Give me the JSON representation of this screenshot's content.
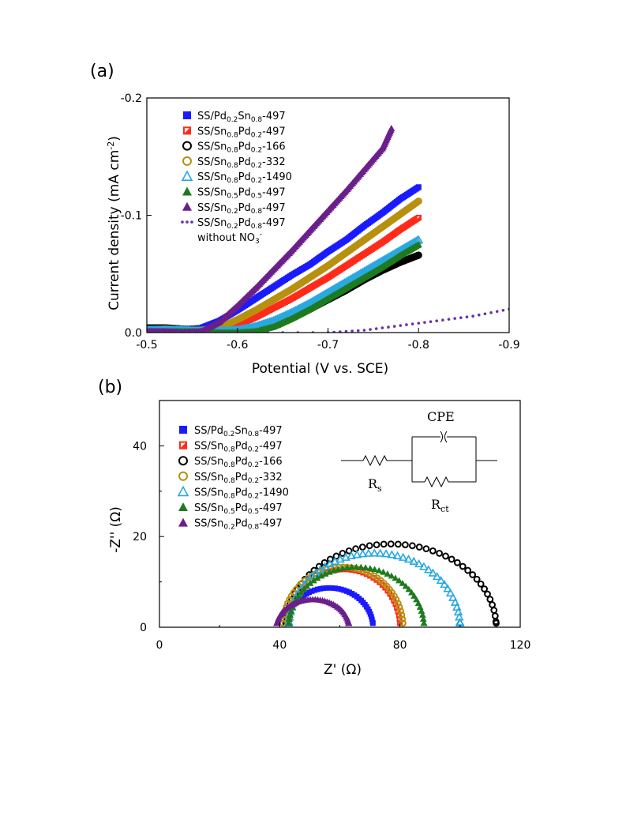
{
  "panel_a_label": "(a)",
  "panel_b_label": "(b)",
  "chart_data": [
    {
      "type": "line",
      "xlabel": "Potential (V vs. SCE)",
      "ylabel": "Current density (mA cm-2)",
      "xlim": [
        -0.5,
        -0.9
      ],
      "ylim": [
        0.0,
        -0.2
      ],
      "xticks": [
        "-0.5",
        "-0.6",
        "-0.7",
        "-0.8",
        "-0.9"
      ],
      "yticks": [
        "0.0",
        "-0.1",
        "-0.2"
      ],
      "legend_position": "top-left",
      "series": [
        {
          "name": "SS/Pd0.2Sn0.8-497",
          "marker": "square",
          "color": "#1a1aff",
          "x": [
            -0.5,
            -0.52,
            -0.54,
            -0.56,
            -0.58,
            -0.6,
            -0.62,
            -0.64,
            -0.66,
            -0.68,
            -0.7,
            -0.72,
            -0.74,
            -0.76,
            -0.78,
            -0.8
          ],
          "y": [
            -0.003,
            -0.004,
            -0.003,
            -0.004,
            -0.01,
            -0.019,
            -0.029,
            -0.039,
            -0.049,
            -0.058,
            -0.069,
            -0.079,
            -0.091,
            -0.102,
            -0.114,
            -0.124
          ]
        },
        {
          "name": "SS/Sn0.8Pd0.2-497",
          "marker": "half-square",
          "color": "#ff2a1a",
          "x": [
            -0.5,
            -0.52,
            -0.54,
            -0.56,
            -0.58,
            -0.6,
            -0.62,
            -0.64,
            -0.66,
            -0.68,
            -0.7,
            -0.72,
            -0.74,
            -0.76,
            -0.78,
            -0.8
          ],
          "y": [
            -0.002,
            -0.003,
            -0.002,
            -0.001,
            -0.002,
            -0.006,
            -0.013,
            -0.021,
            -0.029,
            -0.038,
            -0.047,
            -0.057,
            -0.067,
            -0.077,
            -0.088,
            -0.098
          ]
        },
        {
          "name": "SS/Sn0.8Pd0.2-166",
          "marker": "open-circle",
          "color": "#000000",
          "x": [
            -0.5,
            -0.52,
            -0.54,
            -0.56,
            -0.58,
            -0.6,
            -0.62,
            -0.64,
            -0.66,
            -0.68,
            -0.7,
            -0.72,
            -0.74,
            -0.76,
            -0.78,
            -0.8
          ],
          "y": [
            -0.004,
            -0.004,
            -0.003,
            -0.002,
            -0.001,
            -0.001,
            -0.003,
            -0.007,
            -0.013,
            -0.02,
            -0.028,
            -0.036,
            -0.045,
            -0.053,
            -0.06,
            -0.066
          ]
        },
        {
          "name": "SS/Sn0.8Pd0.2-332",
          "marker": "open-circle",
          "color": "#b8900f",
          "x": [
            -0.5,
            -0.52,
            -0.54,
            -0.56,
            -0.58,
            -0.6,
            -0.62,
            -0.64,
            -0.66,
            -0.68,
            -0.7,
            -0.72,
            -0.74,
            -0.76,
            -0.78,
            -0.8
          ],
          "y": [
            -0.002,
            -0.003,
            -0.002,
            -0.002,
            -0.004,
            -0.011,
            -0.019,
            -0.028,
            -0.037,
            -0.047,
            -0.057,
            -0.068,
            -0.079,
            -0.09,
            -0.101,
            -0.112
          ]
        },
        {
          "name": "SS/Sn0.8Pd0.2-1490",
          "marker": "open-triangle",
          "color": "#2aa8e0",
          "x": [
            -0.5,
            -0.52,
            -0.54,
            -0.56,
            -0.58,
            -0.6,
            -0.62,
            -0.64,
            -0.66,
            -0.68,
            -0.7,
            -0.72,
            -0.74,
            -0.76,
            -0.78,
            -0.8
          ],
          "y": [
            -0.002,
            -0.002,
            -0.002,
            -0.001,
            -0.001,
            -0.002,
            -0.005,
            -0.01,
            -0.017,
            -0.025,
            -0.034,
            -0.043,
            -0.052,
            -0.061,
            -0.07,
            -0.079
          ]
        },
        {
          "name": "SS/Sn0.5Pd0.5-497",
          "marker": "triangle",
          "color": "#1e7a1e",
          "x": [
            -0.5,
            -0.52,
            -0.54,
            -0.56,
            -0.58,
            -0.6,
            -0.62,
            -0.64,
            -0.66,
            -0.68,
            -0.7,
            -0.72,
            -0.74,
            -0.76,
            -0.78,
            -0.8
          ],
          "y": [
            -0.001,
            -0.001,
            -0.001,
            -0.001,
            0.0,
            0.0,
            -0.001,
            -0.005,
            -0.012,
            -0.02,
            -0.029,
            -0.038,
            -0.047,
            -0.056,
            -0.066,
            -0.075
          ]
        },
        {
          "name": "SS/Sn0.2Pd0.8-497",
          "marker": "triangle",
          "color": "#6a1f8a",
          "x": [
            -0.5,
            -0.52,
            -0.54,
            -0.56,
            -0.58,
            -0.6,
            -0.62,
            -0.64,
            -0.66,
            -0.68,
            -0.7,
            -0.72,
            -0.74,
            -0.76,
            -0.77
          ],
          "y": [
            -0.001,
            -0.001,
            0.0,
            -0.001,
            -0.009,
            -0.023,
            -0.038,
            -0.054,
            -0.07,
            -0.087,
            -0.104,
            -0.121,
            -0.139,
            -0.157,
            -0.174
          ]
        },
        {
          "name": "SS/Sn0.2Pd0.8-497 without NO3-",
          "marker": "dots",
          "color": "#6a2fb0",
          "x": [
            -0.5,
            -0.55,
            -0.6,
            -0.65,
            -0.7,
            -0.72,
            -0.74,
            -0.76,
            -0.78,
            -0.8,
            -0.82,
            -0.84,
            -0.86,
            -0.88,
            -0.9
          ],
          "y": [
            0.0,
            0.0,
            0.0,
            0.0,
            0.0,
            -0.001,
            -0.002,
            -0.004,
            -0.006,
            -0.008,
            -0.01,
            -0.012,
            -0.014,
            -0.017,
            -0.02
          ]
        }
      ],
      "legend": [
        {
          "pre": "SS/Pd",
          "s1": "0.2",
          "mid": "Sn",
          "s2": "0.8",
          "post": "-497"
        },
        {
          "pre": "SS/Sn",
          "s1": "0.8",
          "mid": "Pd",
          "s2": "0.2",
          "post": "-497"
        },
        {
          "pre": "SS/Sn",
          "s1": "0.8",
          "mid": "Pd",
          "s2": "0.2",
          "post": "-166"
        },
        {
          "pre": "SS/Sn",
          "s1": "0.8",
          "mid": "Pd",
          "s2": "0.2",
          "post": "-332"
        },
        {
          "pre": "SS/Sn",
          "s1": "0.8",
          "mid": "Pd",
          "s2": "0.2",
          "post": "-1490"
        },
        {
          "pre": "SS/Sn",
          "s1": "0.5",
          "mid": "Pd",
          "s2": "0.5",
          "post": "-497"
        },
        {
          "pre": "SS/Sn",
          "s1": "0.2",
          "mid": "Pd",
          "s2": "0.8",
          "post": "-497"
        },
        {
          "pre": "SS/Sn",
          "s1": "0.2",
          "mid": "Pd",
          "s2": "0.8",
          "post": "-497",
          "line2_pre": "without NO",
          "line2_sub": "3",
          "line2_sup": "-"
        }
      ],
      "ylabel_parts": {
        "pre": "Current density (mA cm",
        "sup": "-2",
        "post": ")"
      }
    },
    {
      "type": "scatter",
      "xlabel": "Z' (Ω)",
      "ylabel": "-Z'' (Ω)",
      "xlim": [
        0,
        120
      ],
      "ylim": [
        0,
        50
      ],
      "xticks": [
        "0",
        "40",
        "80",
        "120"
      ],
      "yticks": [
        "0",
        "20",
        "40"
      ],
      "legend_position": "top-left",
      "circuit_labels": {
        "cpe": "CPE",
        "rs": "R",
        "rs_sub": "s",
        "rct": "R",
        "rct_sub": "ct"
      },
      "series": [
        {
          "name": "SS/Pd0.2Sn0.8-497",
          "marker": "square",
          "color": "#1a1aff",
          "z_start": 42,
          "z_end": 71,
          "peak": 8.5
        },
        {
          "name": "SS/Sn0.8Pd0.2-497",
          "marker": "half-square",
          "color": "#ff2a1a",
          "z_start": 43,
          "z_end": 80,
          "peak": 12.5
        },
        {
          "name": "SS/Sn0.8Pd0.2-166",
          "marker": "open-circle",
          "color": "#000000",
          "z_start": 42,
          "z_end": 112,
          "peak": 18
        },
        {
          "name": "SS/Sn0.8Pd0.2-332",
          "marker": "open-circle",
          "color": "#b8900f",
          "z_start": 41,
          "z_end": 81,
          "peak": 13
        },
        {
          "name": "SS/Sn0.8Pd0.2-1490",
          "marker": "open-triangle",
          "color": "#2aa8e0",
          "z_start": 43,
          "z_end": 100,
          "peak": 16
        },
        {
          "name": "SS/Sn0.5Pd0.5-497",
          "marker": "triangle",
          "color": "#1e7a1e",
          "z_start": 43,
          "z_end": 88,
          "peak": 13
        },
        {
          "name": "SS/Sn0.2Pd0.8-497",
          "marker": "triangle",
          "color": "#6a1f8a",
          "z_start": 39,
          "z_end": 63,
          "peak": 6
        }
      ],
      "legend": [
        {
          "pre": "SS/Pd",
          "s1": "0.2",
          "mid": "Sn",
          "s2": "0.8",
          "post": "-497"
        },
        {
          "pre": "SS/Sn",
          "s1": "0.8",
          "mid": "Pd",
          "s2": "0.2",
          "post": "-497"
        },
        {
          "pre": "SS/Sn",
          "s1": "0.8",
          "mid": "Pd",
          "s2": "0.2",
          "post": "-166"
        },
        {
          "pre": "SS/Sn",
          "s1": "0.8",
          "mid": "Pd",
          "s2": "0.2",
          "post": "-332"
        },
        {
          "pre": "SS/Sn",
          "s1": "0.8",
          "mid": "Pd",
          "s2": "0.2",
          "post": "-1490"
        },
        {
          "pre": "SS/Sn",
          "s1": "0.5",
          "mid": "Pd",
          "s2": "0.5",
          "post": "-497"
        },
        {
          "pre": "SS/Sn",
          "s1": "0.2",
          "mid": "Pd",
          "s2": "0.8",
          "post": "-497"
        }
      ]
    }
  ]
}
